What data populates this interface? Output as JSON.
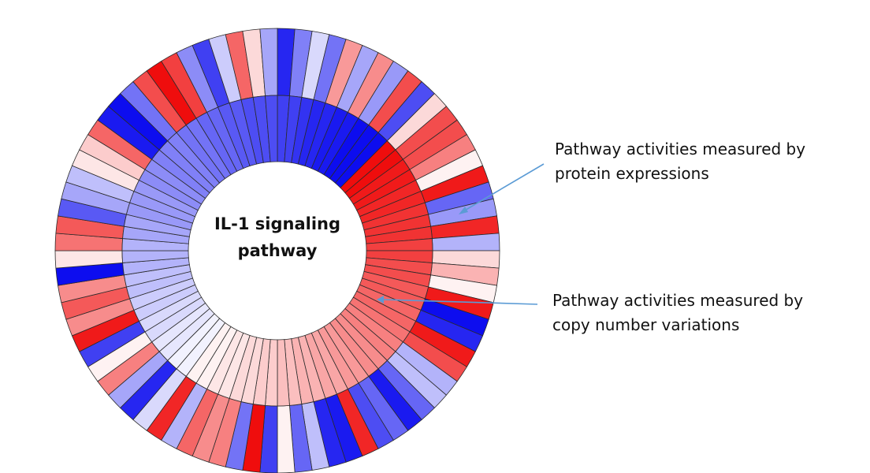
{
  "diagram": {
    "center_label": [
      "IL-1 signaling",
      "pathway"
    ],
    "outer_ring": {
      "label": [
        "Pathway activities measured by",
        "protein expressions"
      ]
    },
    "inner_ring": {
      "label": [
        "Pathway activities measured by",
        "copy number variations"
      ]
    },
    "colors": {
      "negative_max": "#0000ee",
      "neutral": "#ffffff",
      "positive_max": "#ee0000",
      "cell_border": "#2a2a2a",
      "annotation_arrow": "#5b9bd5"
    },
    "segment_count": 80,
    "outer_ring_values": [
      -0.85,
      -0.5,
      -0.15,
      -0.55,
      0.4,
      -0.35,
      0.45,
      -0.4,
      0.7,
      -0.7,
      0.15,
      0.7,
      0.7,
      0.5,
      0.05,
      0.9,
      -0.6,
      -0.4,
      0.85,
      -0.3,
      0.15,
      0.3,
      0.05,
      0.9,
      -0.95,
      -0.85,
      0.9,
      0.7,
      -0.3,
      -0.25,
      -0.6,
      -0.9,
      -0.6,
      -0.7,
      0.85,
      -0.9,
      -0.85,
      -0.25,
      -0.6,
      0.05,
      -0.75,
      0.95,
      -0.55,
      0.5,
      0.45,
      0.6,
      -0.3,
      0.85,
      -0.15,
      -0.85,
      -0.35,
      0.5,
      0.05,
      -0.75,
      0.9,
      0.45,
      0.65,
      0.45,
      -0.95,
      0.1,
      0.55,
      0.65,
      -0.65,
      -0.35,
      -0.25,
      0.1,
      0.2,
      0.6,
      -0.9,
      -0.95,
      -0.55,
      0.7,
      0.95,
      0.75,
      -0.45,
      -0.75,
      -0.2,
      0.6,
      0.15,
      -0.35
    ],
    "inner_ring_values": [
      -0.75,
      -0.75,
      -0.8,
      -0.85,
      -0.85,
      -0.9,
      -0.9,
      -0.95,
      -0.95,
      -0.95,
      0.95,
      0.95,
      0.9,
      0.9,
      0.85,
      0.85,
      0.8,
      0.8,
      0.8,
      0.75,
      0.75,
      0.7,
      0.7,
      0.65,
      0.65,
      0.6,
      0.6,
      0.55,
      0.5,
      0.5,
      0.45,
      0.45,
      0.4,
      0.4,
      0.35,
      0.35,
      0.3,
      0.3,
      0.25,
      0.25,
      0.2,
      0.2,
      0.15,
      0.15,
      0.1,
      0.1,
      0.05,
      0.05,
      -0.05,
      -0.05,
      -0.1,
      -0.1,
      -0.15,
      -0.15,
      -0.2,
      -0.2,
      -0.25,
      -0.25,
      -0.3,
      -0.3,
      -0.3,
      -0.35,
      -0.35,
      -0.4,
      -0.4,
      -0.4,
      -0.45,
      -0.45,
      -0.5,
      -0.5,
      -0.5,
      -0.55,
      -0.55,
      -0.6,
      -0.6,
      -0.65,
      -0.65,
      -0.7,
      -0.7,
      -0.7
    ]
  }
}
